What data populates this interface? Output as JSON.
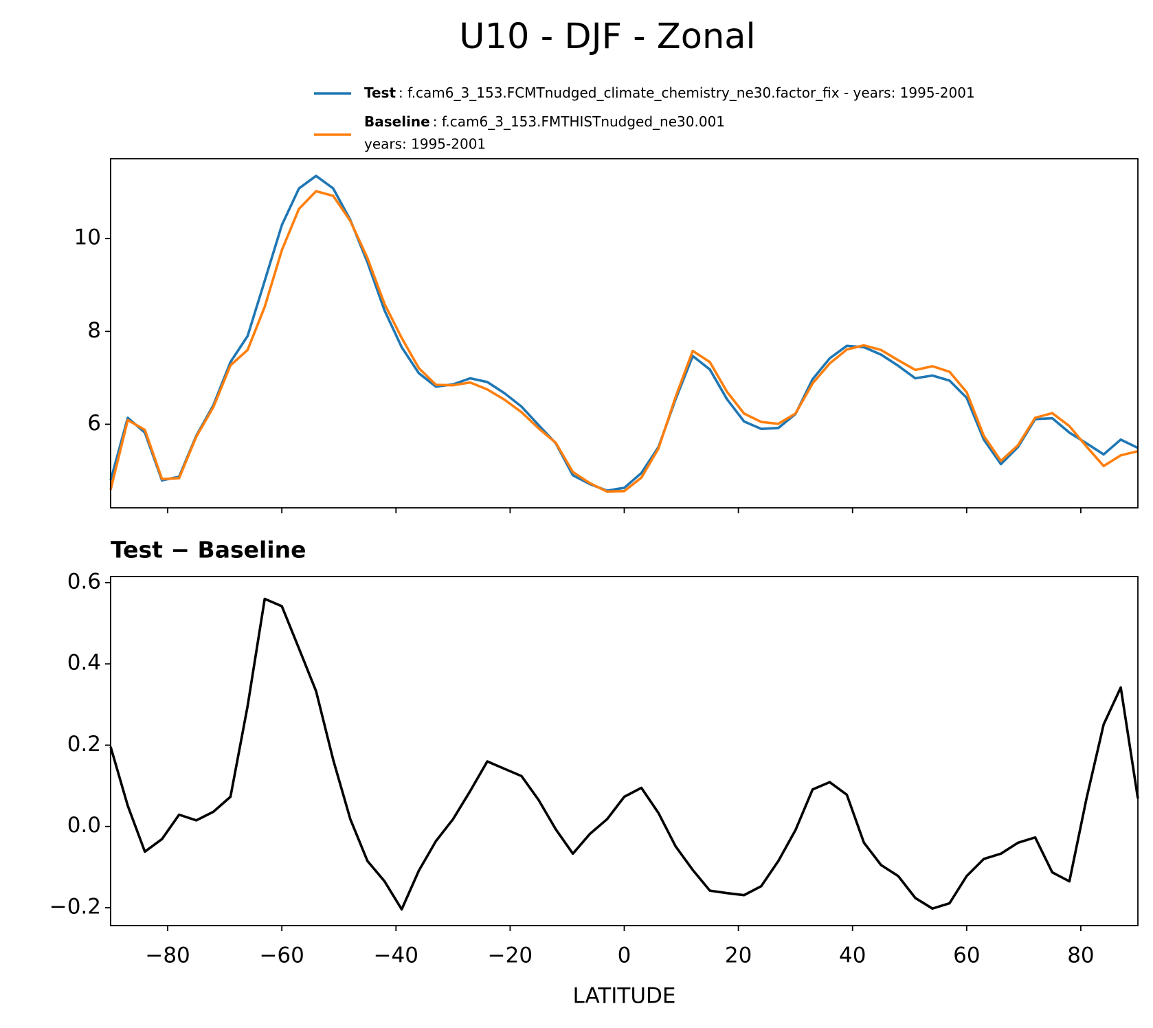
{
  "title": "U10 - DJF - Zonal",
  "chart_data": [
    {
      "type": "line",
      "x": [
        -90,
        -87,
        -84,
        -81,
        -78,
        -75,
        -72,
        -69,
        -66,
        -63,
        -60,
        -57,
        -54,
        -51,
        -48,
        -45,
        -42,
        -39,
        -36,
        -33,
        -30,
        -27,
        -24,
        -21,
        -18,
        -15,
        -12,
        -9,
        -6,
        -3,
        0,
        3,
        6,
        9,
        12,
        15,
        18,
        21,
        24,
        27,
        30,
        33,
        36,
        39,
        42,
        45,
        48,
        51,
        54,
        57,
        60,
        63,
        66,
        69,
        72,
        75,
        78,
        81,
        84,
        87,
        90
      ],
      "series": [
        {
          "name": "Test",
          "label": [
            ": f.cam6_3_153.FCMTnudged_climate_chemistry_ne30.factor_fix - years: 1995-2001"
          ],
          "color": "#1f77b4",
          "values": [
            4.79,
            6.14,
            5.82,
            4.79,
            4.87,
            5.75,
            6.41,
            7.34,
            7.9,
            9.09,
            10.29,
            11.08,
            11.35,
            11.08,
            10.4,
            9.49,
            8.45,
            7.66,
            7.1,
            6.81,
            6.86,
            6.99,
            6.91,
            6.67,
            6.38,
            5.98,
            5.59,
            4.9,
            4.71,
            4.57,
            4.63,
            4.95,
            5.51,
            6.54,
            7.47,
            7.18,
            6.54,
            6.06,
            5.9,
            5.92,
            6.22,
            6.97,
            7.42,
            7.69,
            7.66,
            7.5,
            7.26,
            6.99,
            7.05,
            6.94,
            6.57,
            5.67,
            5.14,
            5.51,
            6.11,
            6.13,
            5.82,
            5.59,
            5.35,
            5.67,
            5.49
          ]
        },
        {
          "name": "Baseline",
          "label": [
            ": f.cam6_3_153.FMTHISTnudged_ne30.001",
            "years: 1995-2001"
          ],
          "color": "#ff7f0e",
          "values": [
            4.59,
            6.09,
            5.88,
            4.82,
            4.84,
            5.73,
            6.37,
            7.27,
            7.6,
            8.53,
            9.75,
            10.64,
            11.02,
            10.92,
            10.38,
            9.58,
            8.59,
            7.86,
            7.21,
            6.85,
            6.84,
            6.9,
            6.75,
            6.53,
            6.26,
            5.91,
            5.6,
            4.97,
            4.73,
            4.55,
            4.56,
            4.85,
            5.48,
            6.59,
            7.58,
            7.34,
            6.7,
            6.23,
            6.05,
            6.01,
            6.23,
            6.88,
            7.31,
            7.61,
            7.7,
            7.6,
            7.38,
            7.17,
            7.25,
            7.13,
            6.69,
            5.75,
            5.21,
            5.55,
            6.14,
            6.24,
            5.96,
            5.52,
            5.1,
            5.33,
            5.42
          ]
        }
      ],
      "xlim": [
        -90,
        90
      ],
      "ylim": [
        4.2,
        11.72
      ],
      "yticks": [
        6,
        8,
        10
      ],
      "legend": "upper right outside"
    },
    {
      "type": "line",
      "title": "Test − Baseline",
      "xlabel": "LATITUDE",
      "x": [
        -90,
        -87,
        -84,
        -81,
        -78,
        -75,
        -72,
        -69,
        -66,
        -63,
        -60,
        -57,
        -54,
        -51,
        -48,
        -45,
        -42,
        -39,
        -36,
        -33,
        -30,
        -27,
        -24,
        -21,
        -18,
        -15,
        -12,
        -9,
        -6,
        -3,
        0,
        3,
        6,
        9,
        12,
        15,
        18,
        21,
        24,
        27,
        30,
        33,
        36,
        39,
        42,
        45,
        48,
        51,
        54,
        57,
        60,
        63,
        66,
        69,
        72,
        75,
        78,
        81,
        84,
        87,
        90
      ],
      "series": [
        {
          "color": "#000000",
          "values": [
            0.196,
            0.051,
            -0.062,
            -0.031,
            0.029,
            0.015,
            0.036,
            0.073,
            0.296,
            0.56,
            0.542,
            0.438,
            0.333,
            0.164,
            0.018,
            -0.085,
            -0.135,
            -0.204,
            -0.109,
            -0.036,
            0.018,
            0.087,
            0.16,
            0.142,
            0.124,
            0.065,
            -0.007,
            -0.067,
            -0.018,
            0.018,
            0.073,
            0.095,
            0.033,
            -0.049,
            -0.107,
            -0.158,
            -0.164,
            -0.169,
            -0.147,
            -0.085,
            -0.009,
            0.091,
            0.109,
            0.078,
            -0.04,
            -0.095,
            -0.122,
            -0.176,
            -0.202,
            -0.189,
            -0.122,
            -0.08,
            -0.067,
            -0.04,
            -0.027,
            -0.113,
            -0.135,
            0.069,
            0.251,
            0.342,
            0.069
          ]
        }
      ],
      "xlim": [
        -90,
        90
      ],
      "ylim": [
        -0.244,
        0.615
      ],
      "yticks": [
        {
          "value": -0.2,
          "label": "−0.2"
        },
        {
          "value": 0,
          "label": "0.0"
        },
        0.2,
        0.4,
        0.6
      ],
      "xticks": [
        {
          "value": -80,
          "label": "−80"
        },
        {
          "value": -60,
          "label": "−60"
        },
        {
          "value": -40,
          "label": "−40"
        },
        {
          "value": -20,
          "label": "−20"
        },
        0,
        20,
        40,
        60,
        80
      ]
    }
  ]
}
